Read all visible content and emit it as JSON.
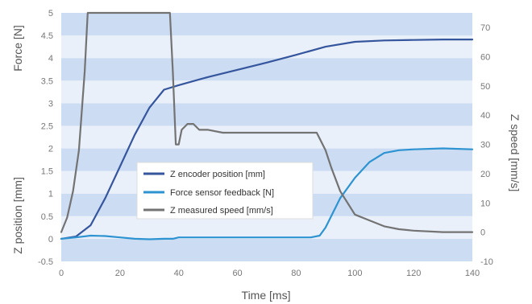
{
  "chart_data": {
    "type": "line",
    "xlabel": "Time [ms]",
    "ylabel_left_top": "Force [N]",
    "ylabel_left_bottom": "Z position [mm]",
    "ylabel_right": "Z speed [mm/s]",
    "xlim": [
      0,
      140
    ],
    "ylim_left": [
      -0.5,
      5
    ],
    "ylim_right": [
      -10,
      75
    ],
    "x_ticks": [
      "0",
      "20",
      "40",
      "60",
      "80",
      "100",
      "120",
      "140"
    ],
    "y_left_ticks": [
      "-0.5",
      "0",
      "0.5",
      "1",
      "1.5",
      "2",
      "2.5",
      "3",
      "3.5",
      "4",
      "4.5",
      "5"
    ],
    "y_right_ticks": [
      "-10",
      "0",
      "10",
      "20",
      "30",
      "40",
      "50",
      "60",
      "70"
    ],
    "grid": "alternating horizontal bands",
    "legend_position": "center-left",
    "series": [
      {
        "name": "Z encoder position [mm]",
        "color": "#35559d",
        "axis": "left",
        "x": [
          0,
          5,
          10,
          15,
          20,
          25,
          30,
          35,
          40,
          50,
          60,
          70,
          80,
          90,
          100,
          110,
          120,
          130,
          140
        ],
        "y": [
          0,
          0.05,
          0.3,
          0.9,
          1.6,
          2.3,
          2.9,
          3.3,
          3.4,
          3.58,
          3.74,
          3.9,
          4.07,
          4.25,
          4.36,
          4.39,
          4.4,
          4.41,
          4.41
        ]
      },
      {
        "name": "Force sensor feedback [N]",
        "color": "#2e93d1",
        "axis": "left",
        "x": [
          0,
          5,
          10,
          15,
          20,
          25,
          30,
          35,
          38,
          40,
          50,
          60,
          70,
          80,
          85,
          88,
          90,
          95,
          100,
          105,
          110,
          115,
          120,
          130,
          140
        ],
        "y": [
          0,
          0.03,
          0.07,
          0.06,
          0.03,
          0.0,
          -0.01,
          0.0,
          0.0,
          0.03,
          0.03,
          0.03,
          0.03,
          0.03,
          0.03,
          0.07,
          0.25,
          0.9,
          1.35,
          1.7,
          1.9,
          1.96,
          1.98,
          2.0,
          1.98
        ]
      },
      {
        "name": "Z measured speed [mm/s]",
        "color": "#737373",
        "axis": "right",
        "x": [
          0,
          2,
          4,
          6,
          8,
          9,
          37,
          38,
          39,
          40,
          41,
          43,
          45,
          47,
          50,
          55,
          60,
          65,
          70,
          75,
          80,
          85,
          87,
          88,
          90,
          92,
          95,
          100,
          105,
          110,
          115,
          120,
          130,
          140
        ],
        "y": [
          0,
          5,
          14,
          28,
          55,
          75,
          75,
          55,
          30,
          30,
          35,
          37,
          37,
          35,
          35,
          34,
          34,
          34,
          34,
          34,
          34,
          34,
          34,
          32,
          28,
          22,
          14,
          6,
          4,
          2,
          1,
          0.5,
          0,
          0
        ]
      }
    ]
  }
}
